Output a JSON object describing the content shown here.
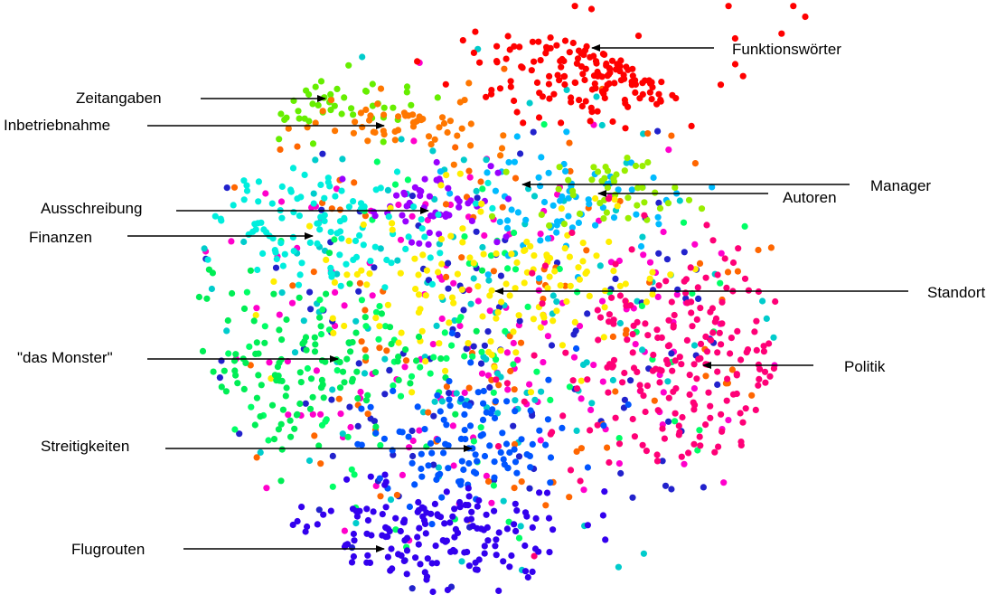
{
  "chart_data": {
    "type": "scatter",
    "title": "",
    "xlabel": "",
    "ylabel": "",
    "grid": false,
    "legend": "none",
    "clusters": [
      {
        "label": "Funktionswörter",
        "color": "#ff0000",
        "center": [
          0.64,
          0.08
        ],
        "spread": [
          0.075,
          0.055
        ],
        "count": 160
      },
      {
        "label": "Zeitangaben",
        "color": "#66ee00",
        "center": [
          0.33,
          0.17
        ],
        "spread": [
          0.045,
          0.025
        ],
        "count": 45
      },
      {
        "label": "Inbetriebnahme",
        "color": "#ff7700",
        "center": [
          0.4,
          0.2
        ],
        "spread": [
          0.06,
          0.025
        ],
        "count": 55
      },
      {
        "label": "Manager",
        "color": "#00bbff",
        "center": [
          0.56,
          0.33
        ],
        "spread": [
          0.05,
          0.05
        ],
        "count": 70
      },
      {
        "label": "Autoren",
        "color": "#99ee00",
        "center": [
          0.61,
          0.32
        ],
        "spread": [
          0.04,
          0.03
        ],
        "count": 45
      },
      {
        "label": "Ausschreibung",
        "color": "#9900ff",
        "center": [
          0.43,
          0.35
        ],
        "spread": [
          0.035,
          0.035
        ],
        "count": 50
      },
      {
        "label": "Finanzen",
        "color": "#00eedd",
        "center": [
          0.29,
          0.36
        ],
        "spread": [
          0.07,
          0.055
        ],
        "count": 110
      },
      {
        "label": "Standort",
        "color": "#ffee00",
        "center": [
          0.49,
          0.48
        ],
        "spread": [
          0.09,
          0.08
        ],
        "count": 140
      },
      {
        "label": "\"das Monster\"",
        "color": "#00ee55",
        "center": [
          0.31,
          0.61
        ],
        "spread": [
          0.06,
          0.075
        ],
        "count": 120
      },
      {
        "label": "Politik",
        "color": "#ff0077",
        "center": [
          0.69,
          0.6
        ],
        "spread": [
          0.08,
          0.09
        ],
        "count": 200
      },
      {
        "label": "Streitigkeiten",
        "color": "#0055ff",
        "center": [
          0.46,
          0.73
        ],
        "spread": [
          0.05,
          0.06
        ],
        "count": 110
      },
      {
        "label": "Flugrouten",
        "color": "#3300ee",
        "center": [
          0.41,
          0.89
        ],
        "spread": [
          0.08,
          0.045
        ],
        "count": 160
      },
      {
        "label": "",
        "color": "#ff00cc",
        "center": [
          0.47,
          0.55
        ],
        "spread": [
          0.17,
          0.17
        ],
        "count": 150
      },
      {
        "label": "",
        "color": "#00cccc",
        "center": [
          0.47,
          0.5
        ],
        "spread": [
          0.18,
          0.19
        ],
        "count": 120
      },
      {
        "label": "",
        "color": "#2222cc",
        "center": [
          0.49,
          0.55
        ],
        "spread": [
          0.18,
          0.2
        ],
        "count": 120
      },
      {
        "label": "",
        "color": "#ff6600",
        "center": [
          0.49,
          0.55
        ],
        "spread": [
          0.18,
          0.18
        ],
        "count": 100
      },
      {
        "label": "",
        "color": "#00ff66",
        "center": [
          0.42,
          0.55
        ],
        "spread": [
          0.17,
          0.19
        ],
        "count": 100
      }
    ],
    "annotations": [
      {
        "text": "Funktionswörter",
        "target": "Funktionswörter"
      },
      {
        "text": "Zeitangaben",
        "target": "Zeitangaben"
      },
      {
        "text": "Inbetriebnahme",
        "target": "Inbetriebnahme"
      },
      {
        "text": "Manager",
        "target": "Manager"
      },
      {
        "text": "Autoren",
        "target": "Autoren"
      },
      {
        "text": "Ausschreibung",
        "target": "Ausschreibung"
      },
      {
        "text": "Finanzen",
        "target": "Finanzen"
      },
      {
        "text": "Standort",
        "target": "Standort"
      },
      {
        "text": "\"das Monster\"",
        "target": "\"das Monster\""
      },
      {
        "text": "Politik",
        "target": "Politik"
      },
      {
        "text": "Streitigkeiten",
        "target": "Streitigkeiten"
      },
      {
        "text": "Flugrouten",
        "target": "Flugrouten"
      }
    ]
  }
}
